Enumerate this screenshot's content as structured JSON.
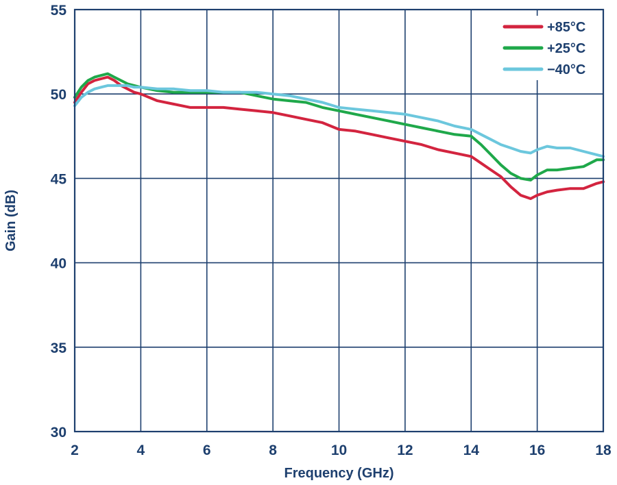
{
  "chart_data": {
    "type": "line",
    "xlabel": "Frequency (GHz)",
    "ylabel": "Gain (dB)",
    "xlim": [
      2,
      18
    ],
    "ylim": [
      30,
      55
    ],
    "xticks": [
      2,
      4,
      6,
      8,
      10,
      12,
      14,
      16,
      18
    ],
    "yticks": [
      30,
      35,
      40,
      45,
      50,
      55
    ],
    "grid": true,
    "legend_position": "top-right",
    "series": [
      {
        "name": "+85°C",
        "color": "#d3243f",
        "x": [
          2.0,
          2.2,
          2.4,
          2.6,
          2.8,
          3.0,
          3.2,
          3.4,
          3.6,
          3.8,
          4.0,
          4.5,
          5.0,
          5.5,
          6.0,
          6.5,
          7.0,
          7.5,
          8.0,
          8.5,
          9.0,
          9.5,
          10.0,
          10.5,
          11.0,
          11.5,
          12.0,
          12.5,
          13.0,
          13.5,
          14.0,
          14.3,
          14.6,
          14.9,
          15.2,
          15.5,
          15.8,
          16.0,
          16.3,
          16.6,
          17.0,
          17.4,
          17.8,
          18.0
        ],
        "y": [
          49.5,
          50.1,
          50.6,
          50.8,
          50.9,
          51.0,
          50.8,
          50.5,
          50.3,
          50.1,
          50.0,
          49.6,
          49.4,
          49.2,
          49.2,
          49.2,
          49.1,
          49.0,
          48.9,
          48.7,
          48.5,
          48.3,
          47.9,
          47.8,
          47.6,
          47.4,
          47.2,
          47.0,
          46.7,
          46.5,
          46.3,
          45.9,
          45.5,
          45.1,
          44.5,
          44.0,
          43.8,
          44.0,
          44.2,
          44.3,
          44.4,
          44.4,
          44.7,
          44.8
        ]
      },
      {
        "name": "+25°C",
        "color": "#1fa84a",
        "x": [
          2.0,
          2.2,
          2.4,
          2.6,
          2.8,
          3.0,
          3.2,
          3.4,
          3.6,
          3.8,
          4.0,
          4.5,
          5.0,
          5.5,
          6.0,
          6.5,
          7.0,
          7.5,
          8.0,
          8.5,
          9.0,
          9.5,
          10.0,
          10.5,
          11.0,
          11.5,
          12.0,
          12.5,
          13.0,
          13.5,
          14.0,
          14.3,
          14.6,
          14.9,
          15.2,
          15.5,
          15.8,
          16.0,
          16.3,
          16.6,
          17.0,
          17.4,
          17.8,
          18.0
        ],
        "y": [
          49.8,
          50.4,
          50.8,
          51.0,
          51.1,
          51.2,
          51.0,
          50.8,
          50.6,
          50.5,
          50.4,
          50.2,
          50.1,
          50.1,
          50.1,
          50.1,
          50.1,
          49.9,
          49.7,
          49.6,
          49.5,
          49.2,
          49.0,
          48.8,
          48.6,
          48.4,
          48.2,
          48.0,
          47.8,
          47.6,
          47.5,
          47.0,
          46.4,
          45.8,
          45.3,
          45.0,
          44.9,
          45.2,
          45.5,
          45.5,
          45.6,
          45.7,
          46.1,
          46.1
        ]
      },
      {
        "name": "−40°C",
        "color": "#6cc7dd",
        "x": [
          2.0,
          2.2,
          2.4,
          2.6,
          2.8,
          3.0,
          3.2,
          3.4,
          3.6,
          3.8,
          4.0,
          4.5,
          5.0,
          5.5,
          6.0,
          6.5,
          7.0,
          7.5,
          8.0,
          8.5,
          9.0,
          9.5,
          10.0,
          10.5,
          11.0,
          11.5,
          12.0,
          12.5,
          13.0,
          13.5,
          14.0,
          14.3,
          14.6,
          14.9,
          15.2,
          15.5,
          15.8,
          16.0,
          16.3,
          16.6,
          17.0,
          17.4,
          17.8,
          18.0
        ],
        "y": [
          49.3,
          49.8,
          50.1,
          50.3,
          50.4,
          50.5,
          50.5,
          50.5,
          50.5,
          50.4,
          50.4,
          50.3,
          50.3,
          50.2,
          50.2,
          50.1,
          50.1,
          50.1,
          50.0,
          49.9,
          49.7,
          49.5,
          49.2,
          49.1,
          49.0,
          48.9,
          48.8,
          48.6,
          48.4,
          48.1,
          47.9,
          47.6,
          47.3,
          47.0,
          46.8,
          46.6,
          46.5,
          46.7,
          46.9,
          46.8,
          46.8,
          46.6,
          46.4,
          46.3
        ]
      }
    ]
  }
}
